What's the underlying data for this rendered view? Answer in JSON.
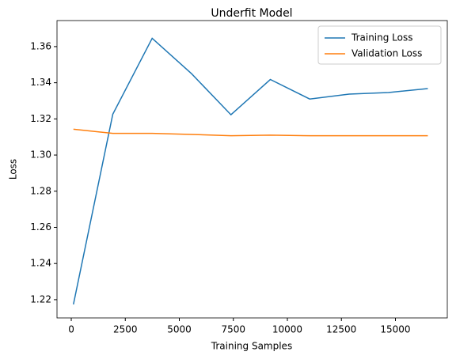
{
  "chart_data": {
    "type": "line",
    "title": "Underfit Model",
    "xlabel": "Training Samples",
    "ylabel": "Loss",
    "x": [
      100,
      1922,
      3744,
      5567,
      7389,
      9211,
      11033,
      12856,
      14678,
      16500
    ],
    "series": [
      {
        "name": "Training Loss",
        "color": "#1f77b4",
        "values": [
          1.2174,
          1.3226,
          1.3646,
          1.345,
          1.3223,
          1.3418,
          1.331,
          1.3337,
          1.3346,
          1.3368
        ]
      },
      {
        "name": "Validation Loss",
        "color": "#ff7f0e",
        "values": [
          1.3143,
          1.312,
          1.312,
          1.3114,
          1.3107,
          1.311,
          1.3107,
          1.3107,
          1.3107,
          1.3107
        ]
      }
    ],
    "xlim": [
      -660,
      17400
    ],
    "ylim": [
      1.2099,
      1.3744
    ],
    "xticks": [
      0,
      2500,
      5000,
      7500,
      10000,
      12500,
      15000
    ],
    "yticks": [
      {
        "value": 1.22,
        "label": "1.22"
      },
      {
        "value": 1.24,
        "label": "1.24"
      },
      {
        "value": 1.26,
        "label": "1.26"
      },
      {
        "value": 1.28,
        "label": "1.28"
      },
      {
        "value": 1.3,
        "label": "1.30"
      },
      {
        "value": 1.32,
        "label": "1.32"
      },
      {
        "value": 1.34,
        "label": "1.34"
      },
      {
        "value": 1.36,
        "label": "1.36"
      }
    ],
    "legend": "upper right"
  }
}
